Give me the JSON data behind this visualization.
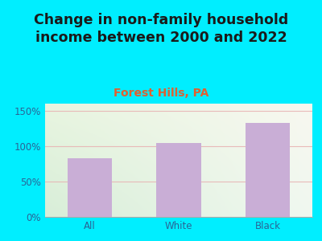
{
  "title": "Change in non-family household\nincome between 2000 and 2022",
  "subtitle": "Forest Hills, PA",
  "categories": [
    "All",
    "White",
    "Black"
  ],
  "values": [
    83,
    104,
    133
  ],
  "bar_color": "#c9aed6",
  "title_fontsize": 12.5,
  "subtitle_fontsize": 10,
  "subtitle_color": "#e06030",
  "title_color": "#1a1a1a",
  "tick_color": "#2a6496",
  "background_fig": "#00eeff",
  "bg_color_topleft": "#e8f5e0",
  "bg_color_topright": "#f8f8f0",
  "bg_color_bottomleft": "#d8eed8",
  "bg_color_bottomright": "#f0f8f0",
  "ylim": [
    0,
    160
  ],
  "yticks": [
    0,
    50,
    100,
    150
  ],
  "ytick_labels": [
    "0%",
    "50%",
    "100%",
    "150%"
  ],
  "gridline_color": "#e8b4b4",
  "gridline_alpha": 0.9,
  "bar_width": 0.5
}
